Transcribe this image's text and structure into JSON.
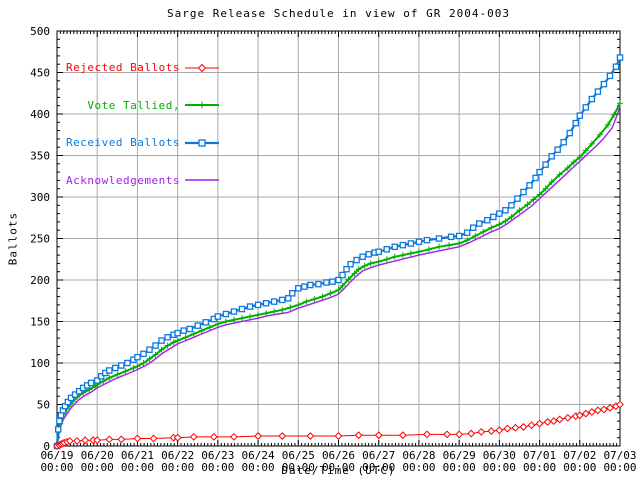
{
  "chart_data": {
    "type": "line",
    "title": "Sarge Release Schedule in view of GR 2004-003",
    "xlabel": "Date/Time (UTC)",
    "ylabel": "Ballots",
    "ylim": [
      0,
      500
    ],
    "y_tick_step": 50,
    "y_minor_step": 10,
    "x_tick_dates": [
      "06/19",
      "06/20",
      "06/21",
      "06/22",
      "06/23",
      "06/24",
      "06/25",
      "06/26",
      "06/27",
      "06/28",
      "06/29",
      "06/30",
      "07/01",
      "07/02",
      "07/03"
    ],
    "x_tick_time": "00:00",
    "x_range_days": [
      0,
      14
    ],
    "x_minor_per_day": 12,
    "grid": true,
    "legend_position": "top-left",
    "colors": {
      "background": "#ffffff",
      "grid": "#a9a9a9",
      "axis": "#000000"
    },
    "series": [
      {
        "name": "Rejected Ballots",
        "color": "#ff0000",
        "marker": "diamond",
        "points": [
          [
            0,
            0
          ],
          [
            0.06,
            1
          ],
          [
            0.1,
            2
          ],
          [
            0.14,
            3
          ],
          [
            0.18,
            4
          ],
          [
            0.25,
            5
          ],
          [
            0.32,
            6
          ],
          [
            0.5,
            6
          ],
          [
            0.7,
            7
          ],
          [
            0.9,
            7
          ],
          [
            1.0,
            7
          ],
          [
            1.3,
            8
          ],
          [
            1.6,
            8
          ],
          [
            2.0,
            9
          ],
          [
            2.4,
            9
          ],
          [
            2.9,
            10
          ],
          [
            3.0,
            10
          ],
          [
            3.4,
            11
          ],
          [
            3.9,
            11
          ],
          [
            4.4,
            11
          ],
          [
            5.0,
            12
          ],
          [
            5.6,
            12
          ],
          [
            6.3,
            12
          ],
          [
            7.0,
            12
          ],
          [
            7.5,
            13
          ],
          [
            8.0,
            13
          ],
          [
            8.6,
            13
          ],
          [
            9.2,
            14
          ],
          [
            9.7,
            14
          ],
          [
            10.0,
            14
          ],
          [
            10.3,
            15
          ],
          [
            10.55,
            17
          ],
          [
            10.8,
            18
          ],
          [
            11.0,
            19
          ],
          [
            11.2,
            21
          ],
          [
            11.4,
            22
          ],
          [
            11.6,
            23
          ],
          [
            11.8,
            25
          ],
          [
            12.0,
            27
          ],
          [
            12.2,
            29
          ],
          [
            12.35,
            30
          ],
          [
            12.5,
            32
          ],
          [
            12.7,
            34
          ],
          [
            12.9,
            36
          ],
          [
            13.0,
            37
          ],
          [
            13.15,
            39
          ],
          [
            13.3,
            41
          ],
          [
            13.45,
            43
          ],
          [
            13.6,
            44
          ],
          [
            13.75,
            46
          ],
          [
            13.9,
            48
          ],
          [
            14.0,
            50
          ]
        ]
      },
      {
        "name": "Vote Tallied,",
        "color": "#00b000",
        "marker": "plus",
        "points": [
          [
            0,
            0
          ],
          [
            0.04,
            18
          ],
          [
            0.08,
            27
          ],
          [
            0.13,
            34
          ],
          [
            0.2,
            41
          ],
          [
            0.3,
            48
          ],
          [
            0.4,
            54
          ],
          [
            0.5,
            59
          ],
          [
            0.65,
            64
          ],
          [
            0.8,
            68
          ],
          [
            0.95,
            72
          ],
          [
            1.0,
            74
          ],
          [
            1.15,
            78
          ],
          [
            1.3,
            82
          ],
          [
            1.5,
            86
          ],
          [
            1.7,
            90
          ],
          [
            1.9,
            94
          ],
          [
            2.0,
            96
          ],
          [
            2.15,
            100
          ],
          [
            2.3,
            105
          ],
          [
            2.45,
            110
          ],
          [
            2.6,
            116
          ],
          [
            2.75,
            121
          ],
          [
            2.9,
            125
          ],
          [
            3.0,
            127
          ],
          [
            3.2,
            131
          ],
          [
            3.4,
            135
          ],
          [
            3.6,
            139
          ],
          [
            3.8,
            143
          ],
          [
            4.0,
            147
          ],
          [
            4.2,
            150
          ],
          [
            4.4,
            152
          ],
          [
            4.6,
            154
          ],
          [
            4.8,
            156
          ],
          [
            5.0,
            158
          ],
          [
            5.2,
            160
          ],
          [
            5.4,
            162
          ],
          [
            5.6,
            164
          ],
          [
            5.8,
            167
          ],
          [
            6.0,
            170
          ],
          [
            6.2,
            174
          ],
          [
            6.4,
            177
          ],
          [
            6.6,
            180
          ],
          [
            6.8,
            184
          ],
          [
            7.0,
            188
          ],
          [
            7.1,
            193
          ],
          [
            7.25,
            201
          ],
          [
            7.4,
            208
          ],
          [
            7.5,
            213
          ],
          [
            7.65,
            217
          ],
          [
            7.8,
            220
          ],
          [
            8.0,
            222
          ],
          [
            8.2,
            225
          ],
          [
            8.4,
            228
          ],
          [
            8.6,
            230
          ],
          [
            8.8,
            232
          ],
          [
            9.0,
            234
          ],
          [
            9.25,
            237
          ],
          [
            9.5,
            240
          ],
          [
            9.75,
            242
          ],
          [
            10.0,
            244
          ],
          [
            10.2,
            248
          ],
          [
            10.4,
            253
          ],
          [
            10.6,
            258
          ],
          [
            10.8,
            263
          ],
          [
            11.0,
            267
          ],
          [
            11.15,
            271
          ],
          [
            11.3,
            276
          ],
          [
            11.5,
            284
          ],
          [
            11.7,
            291
          ],
          [
            11.85,
            297
          ],
          [
            12.0,
            303
          ],
          [
            12.15,
            310
          ],
          [
            12.3,
            318
          ],
          [
            12.5,
            327
          ],
          [
            12.7,
            335
          ],
          [
            12.85,
            342
          ],
          [
            13.0,
            348
          ],
          [
            13.15,
            356
          ],
          [
            13.3,
            364
          ],
          [
            13.5,
            375
          ],
          [
            13.7,
            387
          ],
          [
            13.85,
            399
          ],
          [
            14.0,
            413
          ]
        ]
      },
      {
        "name": "Received Ballots",
        "color": "#0b79e0",
        "marker": "square",
        "points": [
          [
            0,
            0
          ],
          [
            0.03,
            20
          ],
          [
            0.06,
            30
          ],
          [
            0.1,
            37
          ],
          [
            0.15,
            43
          ],
          [
            0.2,
            48
          ],
          [
            0.27,
            53
          ],
          [
            0.35,
            58
          ],
          [
            0.45,
            62
          ],
          [
            0.55,
            66
          ],
          [
            0.65,
            70
          ],
          [
            0.75,
            73
          ],
          [
            0.85,
            76
          ],
          [
            1.0,
            79
          ],
          [
            1.1,
            84
          ],
          [
            1.2,
            88
          ],
          [
            1.3,
            91
          ],
          [
            1.45,
            94
          ],
          [
            1.6,
            97
          ],
          [
            1.75,
            100
          ],
          [
            1.9,
            104
          ],
          [
            2.0,
            107
          ],
          [
            2.15,
            111
          ],
          [
            2.3,
            116
          ],
          [
            2.45,
            121
          ],
          [
            2.6,
            127
          ],
          [
            2.75,
            131
          ],
          [
            2.9,
            134
          ],
          [
            3.0,
            136
          ],
          [
            3.15,
            139
          ],
          [
            3.3,
            141
          ],
          [
            3.5,
            145
          ],
          [
            3.7,
            149
          ],
          [
            3.9,
            153
          ],
          [
            4.0,
            156
          ],
          [
            4.2,
            159
          ],
          [
            4.4,
            162
          ],
          [
            4.6,
            165
          ],
          [
            4.8,
            168
          ],
          [
            5.0,
            170
          ],
          [
            5.2,
            172
          ],
          [
            5.4,
            174
          ],
          [
            5.6,
            176
          ],
          [
            5.75,
            178
          ],
          [
            5.85,
            184
          ],
          [
            6.0,
            190
          ],
          [
            6.15,
            192
          ],
          [
            6.3,
            194
          ],
          [
            6.5,
            195
          ],
          [
            6.7,
            197
          ],
          [
            6.85,
            198
          ],
          [
            7.0,
            200
          ],
          [
            7.1,
            206
          ],
          [
            7.2,
            213
          ],
          [
            7.3,
            219
          ],
          [
            7.45,
            224
          ],
          [
            7.6,
            228
          ],
          [
            7.75,
            231
          ],
          [
            7.9,
            233
          ],
          [
            8.0,
            234
          ],
          [
            8.2,
            237
          ],
          [
            8.4,
            240
          ],
          [
            8.6,
            242
          ],
          [
            8.8,
            244
          ],
          [
            9.0,
            246
          ],
          [
            9.2,
            248
          ],
          [
            9.5,
            250
          ],
          [
            9.8,
            252
          ],
          [
            10.0,
            253
          ],
          [
            10.2,
            257
          ],
          [
            10.35,
            263
          ],
          [
            10.5,
            268
          ],
          [
            10.7,
            272
          ],
          [
            10.85,
            276
          ],
          [
            11.0,
            280
          ],
          [
            11.15,
            284
          ],
          [
            11.3,
            290
          ],
          [
            11.45,
            298
          ],
          [
            11.6,
            306
          ],
          [
            11.75,
            314
          ],
          [
            11.9,
            323
          ],
          [
            12.0,
            330
          ],
          [
            12.15,
            339
          ],
          [
            12.3,
            349
          ],
          [
            12.45,
            357
          ],
          [
            12.6,
            366
          ],
          [
            12.75,
            377
          ],
          [
            12.9,
            389
          ],
          [
            13.0,
            398
          ],
          [
            13.15,
            408
          ],
          [
            13.3,
            418
          ],
          [
            13.45,
            427
          ],
          [
            13.6,
            436
          ],
          [
            13.75,
            446
          ],
          [
            13.9,
            457
          ],
          [
            14.0,
            468
          ]
        ]
      },
      {
        "name": "Acknowledgements",
        "color": "#a020f0",
        "marker": "none",
        "points": [
          [
            0,
            0
          ],
          [
            0.05,
            15
          ],
          [
            0.1,
            25
          ],
          [
            0.16,
            32
          ],
          [
            0.25,
            39
          ],
          [
            0.35,
            46
          ],
          [
            0.45,
            51
          ],
          [
            0.55,
            56
          ],
          [
            0.7,
            61
          ],
          [
            0.85,
            65
          ],
          [
            1.0,
            70
          ],
          [
            1.2,
            75
          ],
          [
            1.4,
            80
          ],
          [
            1.6,
            84
          ],
          [
            1.8,
            88
          ],
          [
            2.0,
            92
          ],
          [
            2.2,
            97
          ],
          [
            2.4,
            103
          ],
          [
            2.6,
            111
          ],
          [
            2.8,
            117
          ],
          [
            3.0,
            123
          ],
          [
            3.2,
            127
          ],
          [
            3.4,
            131
          ],
          [
            3.6,
            135
          ],
          [
            3.8,
            139
          ],
          [
            4.0,
            143
          ],
          [
            4.2,
            146
          ],
          [
            4.4,
            148
          ],
          [
            4.6,
            150
          ],
          [
            4.8,
            152
          ],
          [
            5.0,
            154
          ],
          [
            5.25,
            157
          ],
          [
            5.5,
            159
          ],
          [
            5.75,
            161
          ],
          [
            6.0,
            166
          ],
          [
            6.25,
            170
          ],
          [
            6.5,
            174
          ],
          [
            6.75,
            178
          ],
          [
            7.0,
            183
          ],
          [
            7.15,
            190
          ],
          [
            7.3,
            198
          ],
          [
            7.45,
            205
          ],
          [
            7.6,
            211
          ],
          [
            7.8,
            215
          ],
          [
            8.0,
            218
          ],
          [
            8.25,
            221
          ],
          [
            8.5,
            224
          ],
          [
            8.75,
            227
          ],
          [
            9.0,
            230
          ],
          [
            9.3,
            233
          ],
          [
            9.6,
            236
          ],
          [
            10.0,
            240
          ],
          [
            10.25,
            245
          ],
          [
            10.5,
            251
          ],
          [
            10.75,
            257
          ],
          [
            11.0,
            262
          ],
          [
            11.2,
            268
          ],
          [
            11.4,
            275
          ],
          [
            11.6,
            282
          ],
          [
            11.8,
            289
          ],
          [
            12.0,
            298
          ],
          [
            12.2,
            307
          ],
          [
            12.4,
            316
          ],
          [
            12.6,
            325
          ],
          [
            12.8,
            334
          ],
          [
            13.0,
            343
          ],
          [
            13.2,
            352
          ],
          [
            13.4,
            361
          ],
          [
            13.6,
            371
          ],
          [
            13.8,
            383
          ],
          [
            13.9,
            395
          ],
          [
            14.0,
            409
          ]
        ]
      }
    ]
  }
}
